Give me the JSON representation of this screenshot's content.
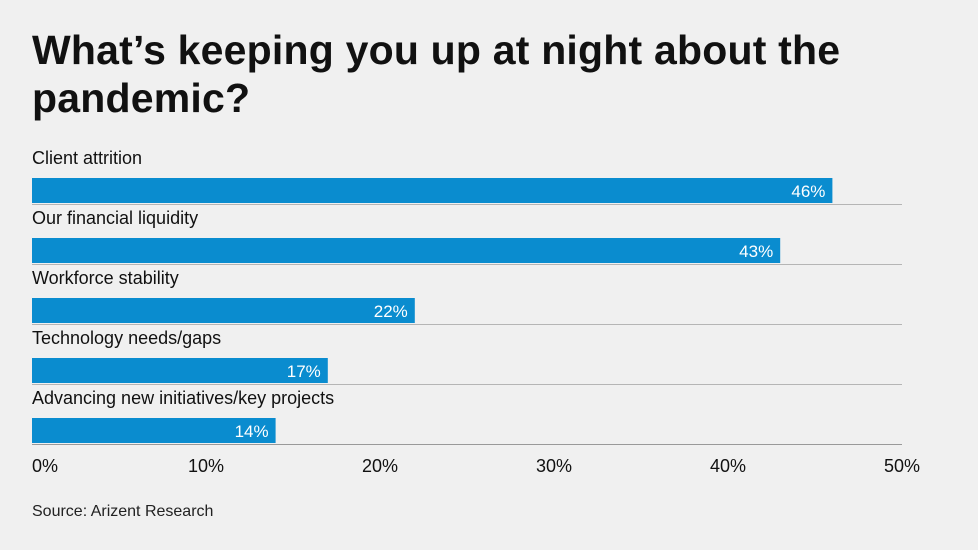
{
  "title": "What’s keeping you up at night about the pandemic?",
  "source": "Source: Arizent Research",
  "colors": {
    "bar": "#0a8ccf",
    "background": "#f0f0f0",
    "separator": "#b5b5b5",
    "axis": "#999999"
  },
  "chart_data": {
    "type": "bar",
    "orientation": "horizontal",
    "title": "What’s keeping you up at night about the pandemic?",
    "categories": [
      "Client attrition",
      "Our financial liquidity",
      "Workforce stability",
      "Technology needs/gaps",
      "Advancing new initiatives/key projects"
    ],
    "values": [
      46,
      43,
      22,
      17,
      14
    ],
    "value_labels": [
      "46%",
      "43%",
      "22%",
      "17%",
      "14%"
    ],
    "xlim": [
      0,
      50
    ],
    "xticks": [
      0,
      10,
      20,
      30,
      40,
      50
    ],
    "xtick_labels": [
      "0%",
      "10%",
      "20%",
      "30%",
      "40%",
      "50%"
    ],
    "xlabel": "",
    "ylabel": "",
    "grid": false,
    "legend": "none"
  }
}
